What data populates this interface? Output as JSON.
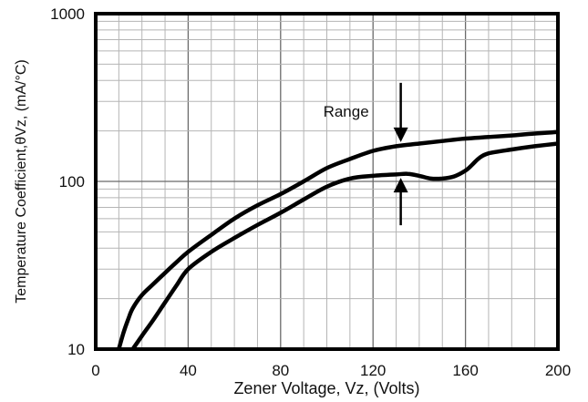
{
  "chart_data": {
    "type": "line",
    "title": "",
    "xlabel": "Zener Voltage, Vz, (Volts)",
    "ylabel": "Temperature Coefficient,θVz,  (mA/°C)",
    "xlim": [
      0,
      200
    ],
    "ylim": [
      10,
      1000
    ],
    "yscale": "log",
    "grid": true,
    "x_ticks": [
      0,
      40,
      80,
      120,
      160,
      200
    ],
    "x_tick_labels": [
      "0",
      "40",
      "80",
      "120",
      "160",
      "200"
    ],
    "y_ticks": [
      10,
      100,
      1000
    ],
    "y_tick_labels": [
      "10",
      "100",
      "1000"
    ],
    "annotation": "Range",
    "annotation_x": 132,
    "series": [
      {
        "x": [
          10,
          12,
          14,
          16,
          20,
          25,
          30,
          35,
          40,
          50,
          60,
          70,
          80,
          90,
          100,
          110,
          120,
          130,
          140,
          150,
          160,
          170,
          180,
          190,
          200
        ],
        "values": [
          10,
          12.5,
          15,
          17.5,
          21,
          24.5,
          28.5,
          33,
          38,
          48,
          60,
          72,
          84,
          100,
          120,
          136,
          152,
          162,
          168,
          174,
          180,
          184,
          188,
          193,
          197
        ]
      },
      {
        "x": [
          16,
          20,
          25,
          30,
          35,
          40,
          50,
          60,
          70,
          80,
          90,
          100,
          110,
          120,
          130,
          135,
          140,
          145,
          150,
          155,
          160,
          163,
          166,
          170,
          180,
          190,
          200
        ],
        "values": [
          10,
          12,
          15,
          19,
          24,
          30,
          38,
          46,
          55,
          65,
          78,
          93,
          104,
          108,
          110,
          111,
          108,
          104,
          104,
          107,
          116,
          126,
          138,
          147,
          155,
          162,
          168
        ]
      }
    ]
  }
}
